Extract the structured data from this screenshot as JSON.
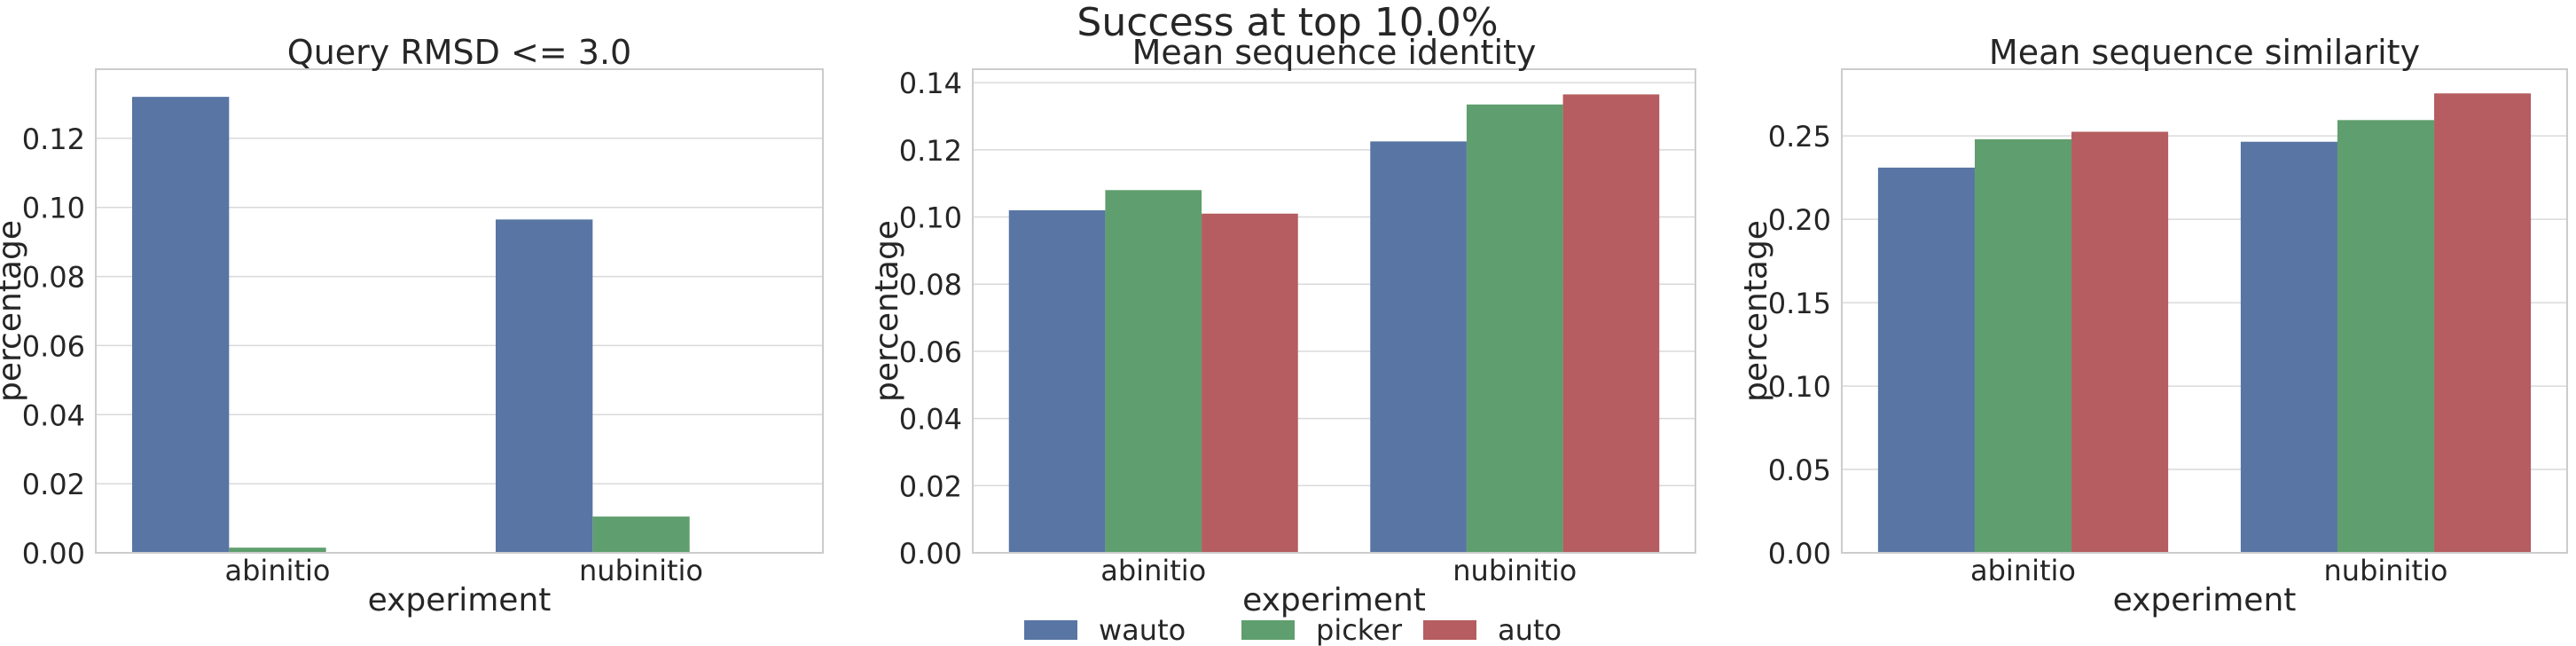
{
  "figure": {
    "title": "Success at top 10.0%"
  },
  "colors": {
    "wauto": "#5875a4",
    "picker": "#5f9e6e",
    "auto": "#b55d60",
    "grid": "#d9d9d9",
    "axis": "#cccccc"
  },
  "legend": {
    "placement": "bottom-center",
    "entries": [
      {
        "name": "wauto",
        "color": "#5875a4"
      },
      {
        "name": "picker",
        "color": "#5f9e6e"
      },
      {
        "name": "auto",
        "color": "#b55d60"
      }
    ]
  },
  "chart_data": [
    {
      "type": "bar",
      "title": "Query RMSD <= 3.0",
      "xlabel": "experiment",
      "ylabel": "percentage",
      "categories": [
        "abinitio",
        "nubinitio"
      ],
      "ylim": [
        0,
        0.14
      ],
      "yticks": [
        0.0,
        0.02,
        0.04,
        0.06,
        0.08,
        0.1,
        0.12
      ],
      "ytick_labels": [
        "0.00",
        "0.02",
        "0.04",
        "0.06",
        "0.08",
        "0.10",
        "0.12"
      ],
      "grid": true,
      "series": [
        {
          "name": "wauto",
          "values": [
            0.132,
            0.0965
          ]
        },
        {
          "name": "picker",
          "values": [
            0.0015,
            0.0105
          ]
        },
        {
          "name": "auto",
          "values": [
            0.0,
            0.0
          ]
        }
      ]
    },
    {
      "type": "bar",
      "title": "Mean sequence identity",
      "xlabel": "experiment",
      "ylabel": "percentage",
      "categories": [
        "abinitio",
        "nubinitio"
      ],
      "ylim": [
        0,
        0.144
      ],
      "yticks": [
        0.0,
        0.02,
        0.04,
        0.06,
        0.08,
        0.1,
        0.12,
        0.14
      ],
      "ytick_labels": [
        "0.00",
        "0.02",
        "0.04",
        "0.06",
        "0.08",
        "0.10",
        "0.12",
        "0.14"
      ],
      "grid": true,
      "series": [
        {
          "name": "wauto",
          "values": [
            0.102,
            0.1225
          ]
        },
        {
          "name": "picker",
          "values": [
            0.108,
            0.1335
          ]
        },
        {
          "name": "auto",
          "values": [
            0.101,
            0.1365
          ]
        }
      ]
    },
    {
      "type": "bar",
      "title": "Mean sequence similarity",
      "xlabel": "experiment",
      "ylabel": "percentage",
      "categories": [
        "abinitio",
        "nubinitio"
      ],
      "ylim": [
        0,
        0.29
      ],
      "yticks": [
        0.0,
        0.05,
        0.1,
        0.15,
        0.2,
        0.25
      ],
      "ytick_labels": [
        "0.00",
        "0.05",
        "0.10",
        "0.15",
        "0.20",
        "0.25"
      ],
      "grid": true,
      "series": [
        {
          "name": "wauto",
          "values": [
            0.231,
            0.2465
          ]
        },
        {
          "name": "picker",
          "values": [
            0.248,
            0.2595
          ]
        },
        {
          "name": "auto",
          "values": [
            0.2525,
            0.2755
          ]
        }
      ]
    }
  ]
}
